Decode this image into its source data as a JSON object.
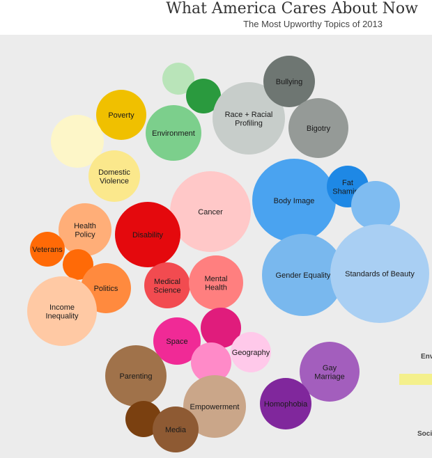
{
  "header": {
    "title": "What America Cares About Now",
    "subtitle": "The Most Upworthy Topics of 2013"
  },
  "legend": {
    "label_env": "Env",
    "label_soc": "Soci",
    "swatch_color": "#f4f08c"
  },
  "chart_data": {
    "type": "bubble",
    "title": "What America Cares About Now",
    "subtitle": "The Most Upworthy Topics of 2013",
    "bubbles": [
      {
        "label": "",
        "relative_size": 23,
        "color": "#b9e4b9"
      },
      {
        "label": "",
        "relative_size": 25,
        "color": "#2a9a3e"
      },
      {
        "label": "Poverty",
        "relative_size": 36,
        "color": "#f0c000"
      },
      {
        "label": "Environment",
        "relative_size": 40,
        "color": "#7ccf8c"
      },
      {
        "label": "Race + Racial Profiling",
        "relative_size": 52,
        "color": "#c7cdca"
      },
      {
        "label": "Bullying",
        "relative_size": 37,
        "color": "#6e7672"
      },
      {
        "label": "Bigotry",
        "relative_size": 43,
        "color": "#959a97"
      },
      {
        "label": "",
        "relative_size": 38,
        "color": "#fdf6c8"
      },
      {
        "label": "Domestic Violence",
        "relative_size": 37,
        "color": "#fbe88c"
      },
      {
        "label": "Cancer",
        "relative_size": 58,
        "color": "#ffc8c8"
      },
      {
        "label": "Body Image",
        "relative_size": 60,
        "color": "#4aa3f0"
      },
      {
        "label": "Fat Shaming",
        "relative_size": 30,
        "color": "#1e88e5"
      },
      {
        "label": "",
        "relative_size": 35,
        "color": "#7fbcf1"
      },
      {
        "label": "Health Policy",
        "relative_size": 38,
        "color": "#ffae78"
      },
      {
        "label": "Disability",
        "relative_size": 47,
        "color": "#e4090d"
      },
      {
        "label": "Veterans",
        "relative_size": 25,
        "color": "#ff6a07"
      },
      {
        "label": "",
        "relative_size": 22,
        "color": "#ff6a07"
      },
      {
        "label": "Politics",
        "relative_size": 36,
        "color": "#ff8a3e"
      },
      {
        "label": "Income Inequality",
        "relative_size": 50,
        "color": "#ffc9a4"
      },
      {
        "label": "Medical Science",
        "relative_size": 33,
        "color": "#f24b50"
      },
      {
        "label": "Mental Health",
        "relative_size": 39,
        "color": "#ff7f7f"
      },
      {
        "label": "Gender Equality",
        "relative_size": 59,
        "color": "#79b8ee"
      },
      {
        "label": "Standards of Beauty",
        "relative_size": 71,
        "color": "#a9cff3"
      },
      {
        "label": "Space",
        "relative_size": 34,
        "color": "#f02a96"
      },
      {
        "label": "",
        "relative_size": 29,
        "color": "#e01c7c"
      },
      {
        "label": "Geography",
        "relative_size": 29,
        "color": "#ffc9ea"
      },
      {
        "label": "",
        "relative_size": 29,
        "color": "#ff8ac8"
      },
      {
        "label": "Parenting",
        "relative_size": 44,
        "color": "#a0724a"
      },
      {
        "label": "Empowerment",
        "relative_size": 45,
        "color": "#caa689"
      },
      {
        "label": "Gay Marriage",
        "relative_size": 43,
        "color": "#a35ebd"
      },
      {
        "label": "Homophobia",
        "relative_size": 37,
        "color": "#80279c"
      },
      {
        "label": "",
        "relative_size": 26,
        "color": "#7a4010"
      },
      {
        "label": "Media",
        "relative_size": 33,
        "color": "#8e5a33"
      }
    ]
  }
}
